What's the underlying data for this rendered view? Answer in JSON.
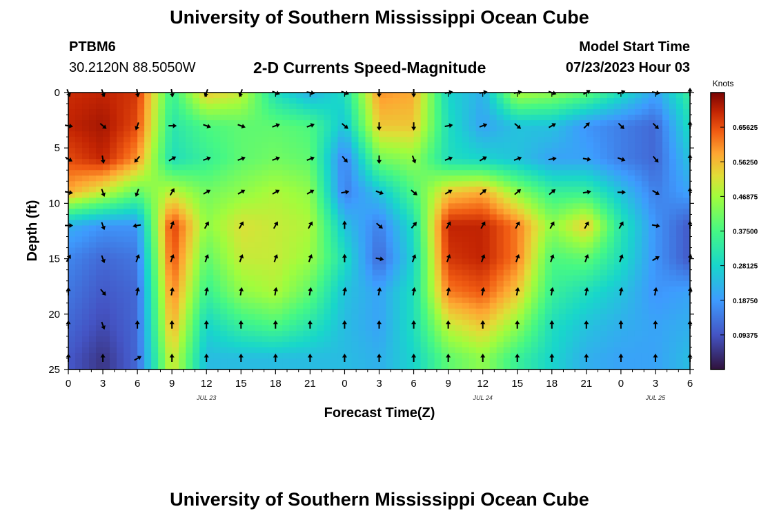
{
  "header": {
    "title": "University of Southern Mississippi Ocean Cube",
    "station": "PTBM6",
    "location": "30.2120N  88.5050W",
    "chart_heading": "2-D Currents Speed-Magnitude",
    "model_label": "Model Start Time",
    "model_time": "07/23/2023 Hour 03"
  },
  "footer": {
    "title": "University of Southern Mississippi Ocean Cube"
  },
  "chart_data": {
    "type": "heatmap",
    "title": "2-D Currents Speed-Magnitude",
    "xlabel": "Forecast Time(Z)",
    "ylabel": "Depth (ft)",
    "x_ticks": [
      "0",
      "3",
      "6",
      "9",
      "12",
      "15",
      "18",
      "21",
      "0",
      "3",
      "6",
      "9",
      "12",
      "15",
      "18",
      "21",
      "0",
      "3",
      "6"
    ],
    "x_hours": [
      0,
      54
    ],
    "day_labels": [
      {
        "label": "JUL 23",
        "hour": 12
      },
      {
        "label": "JUL 24",
        "hour": 36
      },
      {
        "label": "JUL 25",
        "hour": 51
      }
    ],
    "y_ticks": [
      0,
      5,
      10,
      15,
      20,
      25
    ],
    "ylim": [
      0,
      25
    ],
    "colorbar": {
      "unit": "Knots",
      "ticks": [
        "0.65625",
        "0.56250",
        "0.46875",
        "0.37500",
        "0.28125",
        "0.18750",
        "0.09375"
      ],
      "tick_values": [
        0.65625,
        0.5625,
        0.46875,
        0.375,
        0.28125,
        0.1875,
        0.09375
      ],
      "range": [
        0,
        0.75
      ]
    },
    "depths_ft": [
      0,
      3,
      6,
      9,
      12,
      15,
      18,
      21,
      24
    ],
    "arrow_hours": [
      0,
      3,
      6,
      9,
      12,
      15,
      18,
      21,
      24,
      27,
      30,
      33,
      36,
      39,
      42,
      45,
      48,
      51,
      54
    ],
    "speed_knots": [
      [
        0.69,
        0.7,
        0.68,
        0.35,
        0.55,
        0.5,
        0.3,
        0.22,
        0.3,
        0.6,
        0.58,
        0.28,
        0.22,
        0.48,
        0.45,
        0.4,
        0.3,
        0.2,
        0.35
      ],
      [
        0.7,
        0.72,
        0.66,
        0.32,
        0.38,
        0.4,
        0.4,
        0.38,
        0.25,
        0.55,
        0.55,
        0.3,
        0.2,
        0.25,
        0.25,
        0.18,
        0.15,
        0.12,
        0.3
      ],
      [
        0.66,
        0.7,
        0.6,
        0.3,
        0.35,
        0.4,
        0.42,
        0.4,
        0.15,
        0.42,
        0.45,
        0.3,
        0.28,
        0.25,
        0.2,
        0.2,
        0.15,
        0.12,
        0.25
      ],
      [
        0.58,
        0.5,
        0.4,
        0.5,
        0.42,
        0.45,
        0.48,
        0.45,
        0.15,
        0.25,
        0.38,
        0.55,
        0.58,
        0.45,
        0.35,
        0.35,
        0.25,
        0.15,
        0.2
      ],
      [
        0.22,
        0.18,
        0.18,
        0.68,
        0.45,
        0.52,
        0.5,
        0.48,
        0.25,
        0.15,
        0.3,
        0.7,
        0.7,
        0.62,
        0.45,
        0.55,
        0.32,
        0.18,
        0.1
      ],
      [
        0.16,
        0.12,
        0.14,
        0.66,
        0.4,
        0.5,
        0.5,
        0.46,
        0.3,
        0.12,
        0.28,
        0.68,
        0.7,
        0.62,
        0.38,
        0.4,
        0.3,
        0.18,
        0.1
      ],
      [
        0.14,
        0.1,
        0.12,
        0.62,
        0.35,
        0.45,
        0.48,
        0.4,
        0.25,
        0.2,
        0.3,
        0.62,
        0.65,
        0.55,
        0.35,
        0.3,
        0.25,
        0.18,
        0.2
      ],
      [
        0.12,
        0.08,
        0.12,
        0.58,
        0.28,
        0.35,
        0.38,
        0.32,
        0.24,
        0.2,
        0.3,
        0.5,
        0.55,
        0.45,
        0.3,
        0.25,
        0.22,
        0.2,
        0.22
      ],
      [
        0.1,
        0.05,
        0.12,
        0.52,
        0.24,
        0.24,
        0.24,
        0.24,
        0.24,
        0.22,
        0.28,
        0.4,
        0.45,
        0.35,
        0.28,
        0.22,
        0.2,
        0.2,
        0.24
      ]
    ],
    "direction_deg": [
      [
        160,
        160,
        170,
        170,
        200,
        200,
        110,
        100,
        110,
        180,
        180,
        80,
        80,
        80,
        110,
        60,
        70,
        100,
        0
      ],
      [
        100,
        130,
        200,
        90,
        110,
        110,
        70,
        70,
        130,
        180,
        180,
        80,
        70,
        130,
        60,
        45,
        135,
        135,
        0
      ],
      [
        120,
        170,
        220,
        60,
        70,
        70,
        70,
        70,
        140,
        180,
        160,
        70,
        60,
        70,
        80,
        100,
        110,
        140,
        0
      ],
      [
        100,
        160,
        200,
        30,
        60,
        60,
        60,
        60,
        80,
        110,
        130,
        60,
        50,
        50,
        50,
        80,
        90,
        120,
        0
      ],
      [
        90,
        160,
        260,
        20,
        30,
        30,
        30,
        30,
        0,
        130,
        40,
        30,
        30,
        30,
        30,
        30,
        30,
        100,
        0
      ],
      [
        30,
        160,
        20,
        20,
        20,
        20,
        20,
        20,
        0,
        100,
        20,
        20,
        20,
        20,
        20,
        20,
        20,
        60,
        10
      ],
      [
        0,
        140,
        10,
        10,
        10,
        10,
        10,
        10,
        10,
        10,
        10,
        10,
        10,
        10,
        10,
        10,
        10,
        10,
        10
      ],
      [
        0,
        160,
        0,
        0,
        0,
        0,
        0,
        0,
        0,
        0,
        0,
        0,
        0,
        0,
        0,
        0,
        0,
        0,
        0
      ],
      [
        0,
        0,
        60,
        0,
        0,
        0,
        0,
        0,
        0,
        0,
        0,
        0,
        0,
        0,
        0,
        0,
        0,
        0,
        0
      ]
    ]
  }
}
